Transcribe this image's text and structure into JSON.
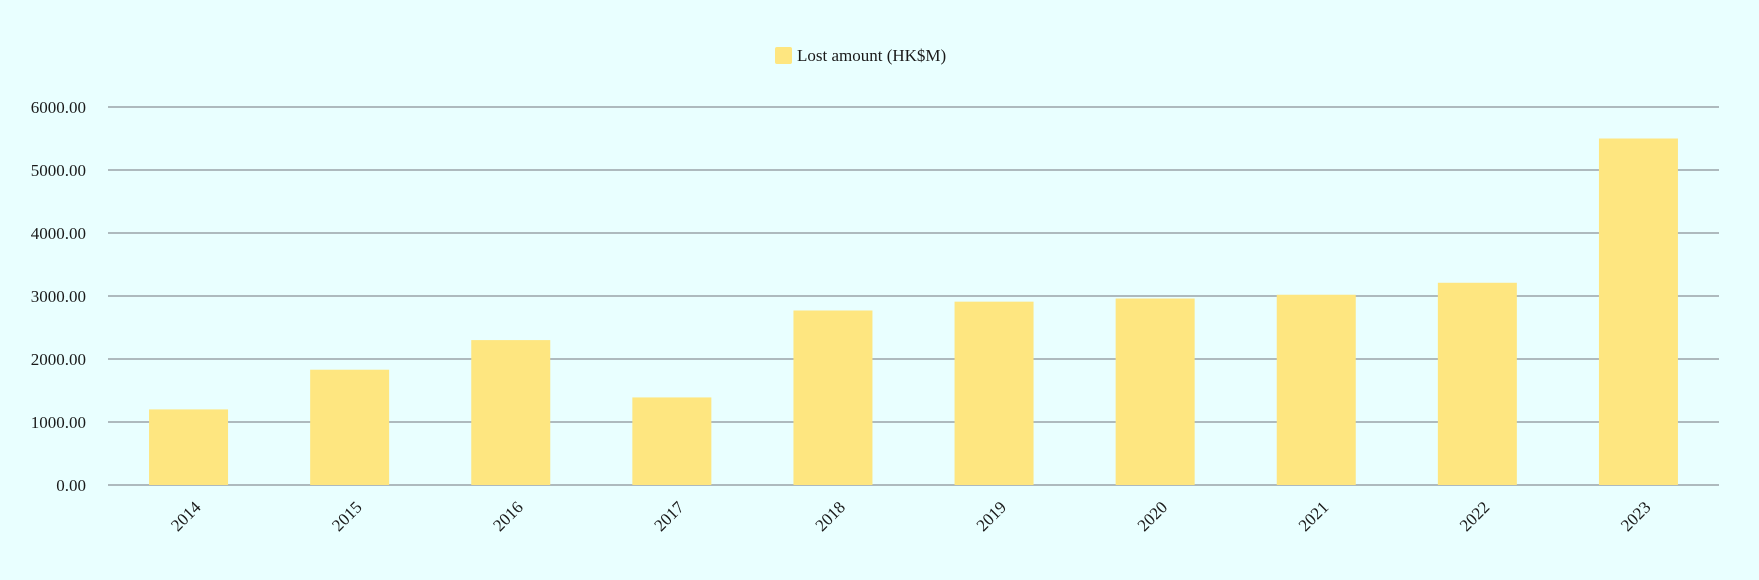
{
  "chart_data": {
    "type": "bar",
    "categories": [
      "2014",
      "2015",
      "2016",
      "2017",
      "2018",
      "2019",
      "2020",
      "2021",
      "2022",
      "2023"
    ],
    "series": [
      {
        "name": "Lost amount (HK$M)",
        "values": [
          1200,
          1830,
          2300,
          1390,
          2770,
          2910,
          2960,
          3020,
          3210,
          5500
        ]
      }
    ],
    "yticks": [
      "0.00",
      "1000.00",
      "2000.00",
      "3000.00",
      "4000.00",
      "5000.00",
      "6000.00"
    ],
    "ylim": [
      0,
      6000
    ],
    "grid": true,
    "legend_position": "top-center",
    "colors": {
      "bar": "#fee680",
      "grid": "#9aa4a8",
      "background": "#e9ffff"
    }
  }
}
